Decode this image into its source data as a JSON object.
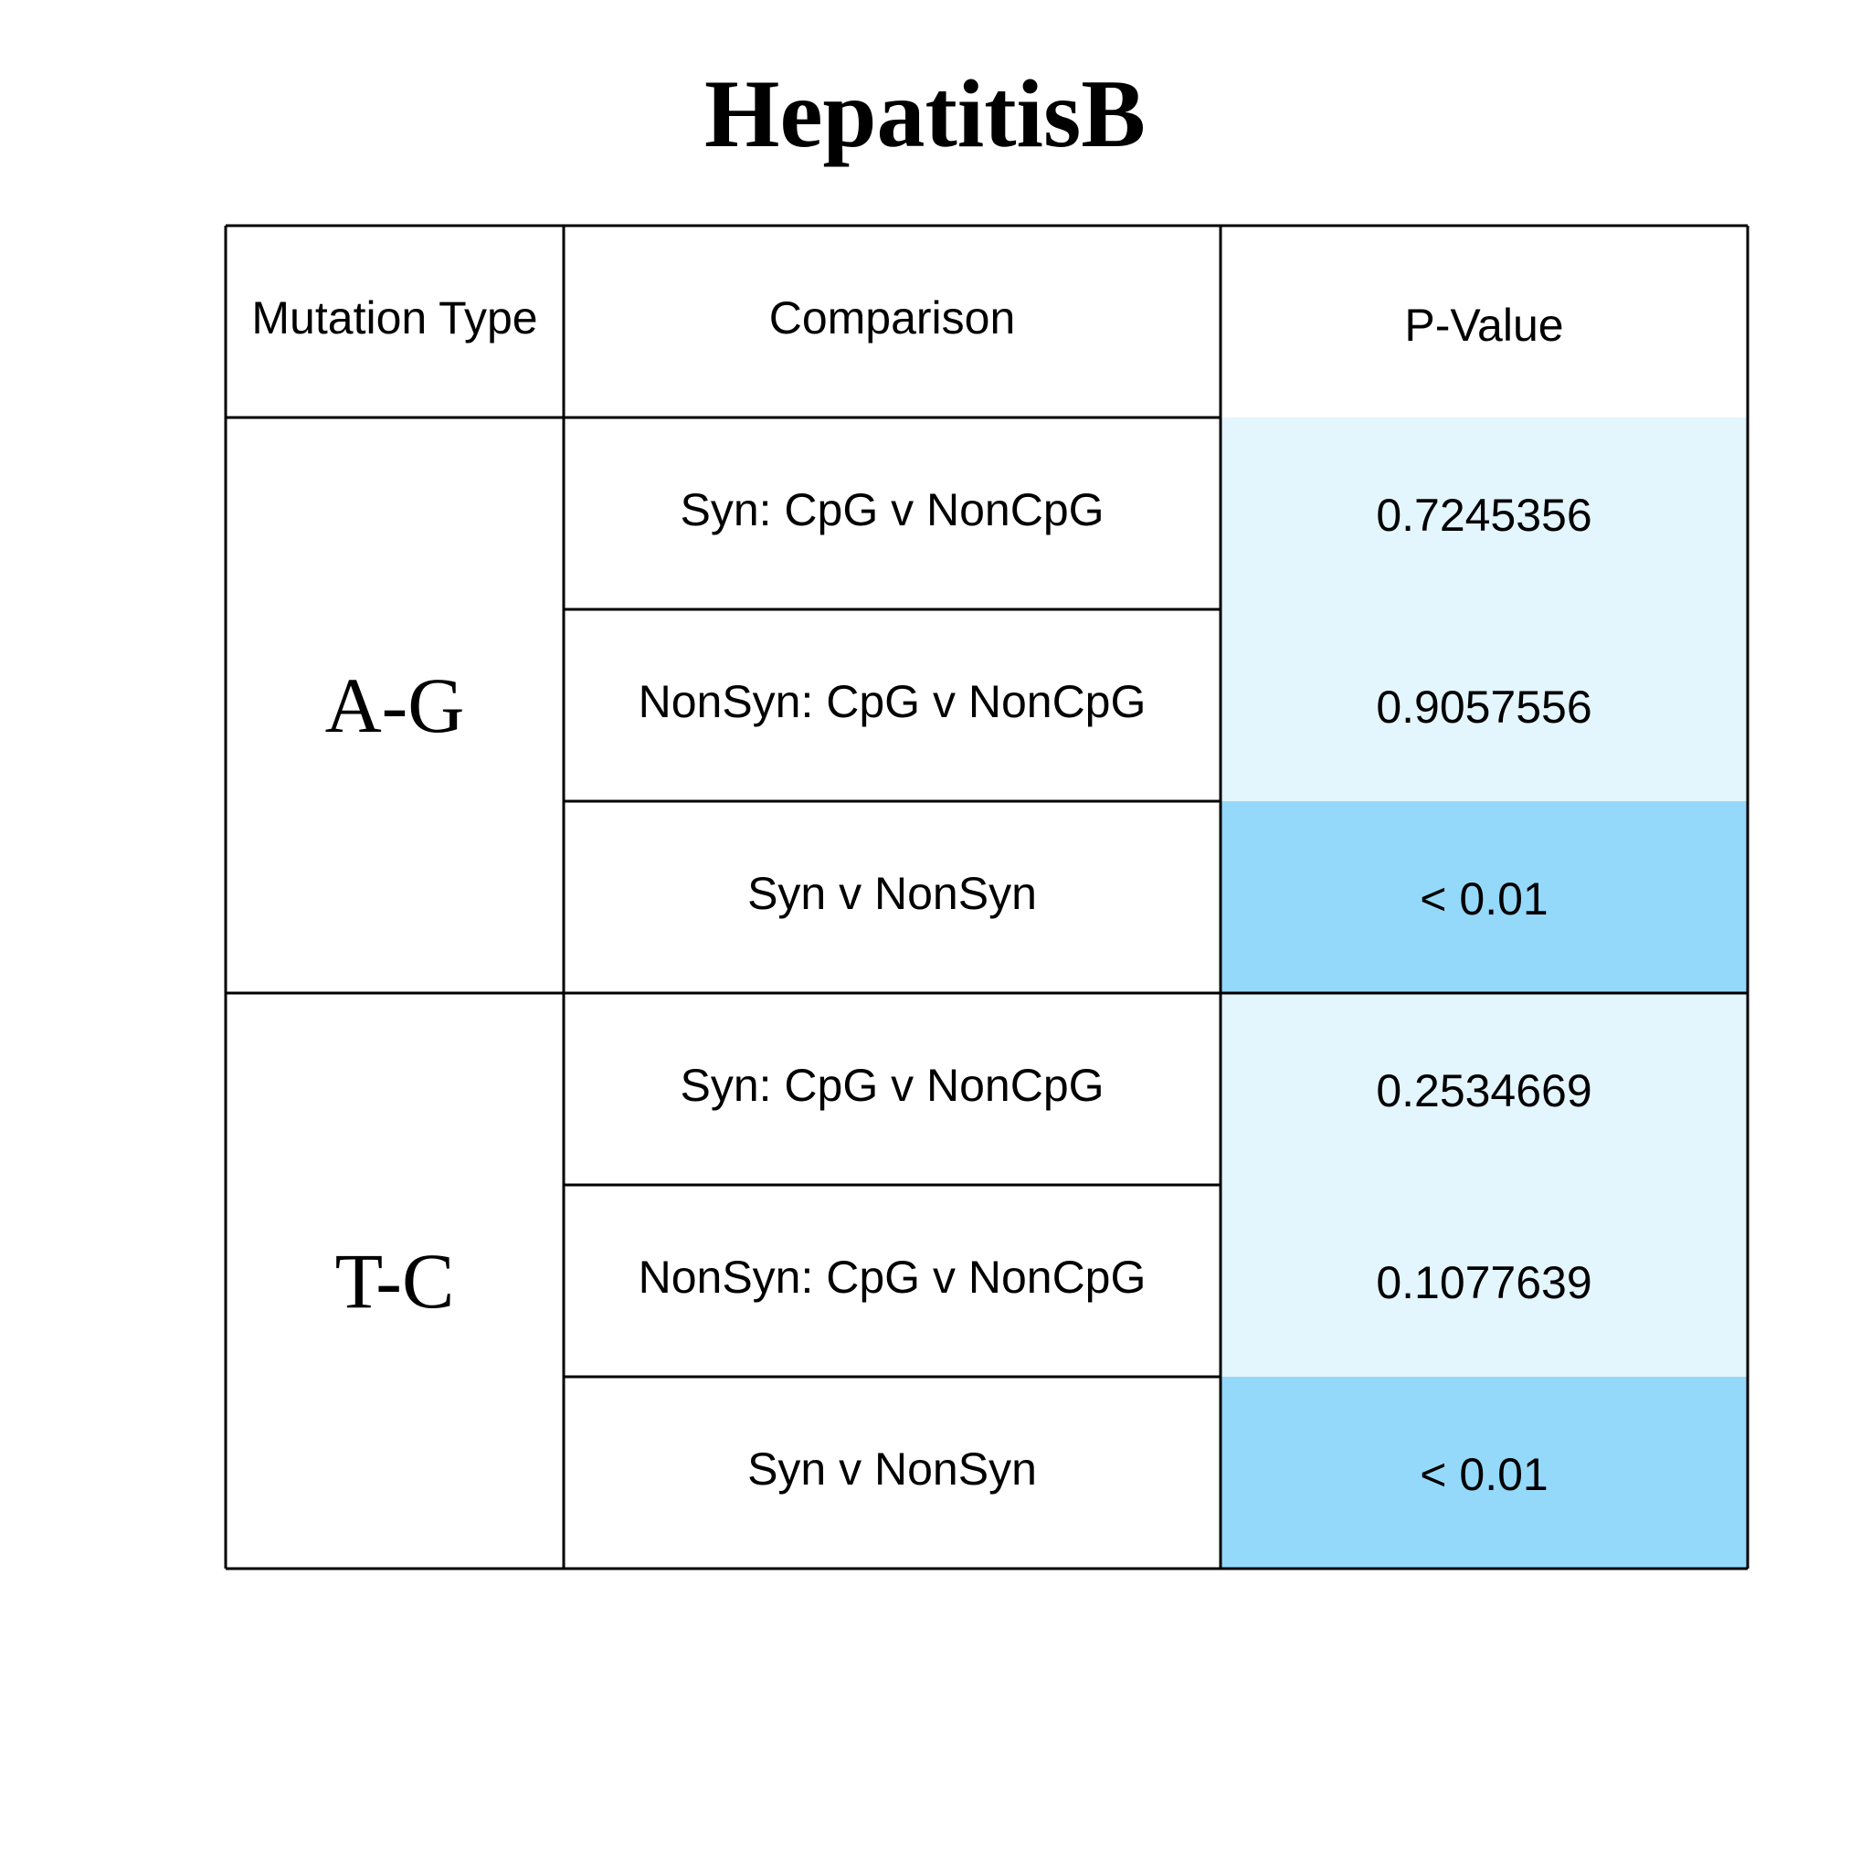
{
  "chart_data": {
    "type": "table",
    "title": "HepatitisB",
    "columns": [
      "Mutation Type",
      "Comparison",
      "P-Value"
    ],
    "groups": [
      {
        "mutation_type": "A-G",
        "rows": [
          {
            "comparison": "Syn: CpG v NonCpG",
            "p_value": "0.7245356",
            "significant": false
          },
          {
            "comparison": "NonSyn: CpG v NonCpG",
            "p_value": "0.9057556",
            "significant": false
          },
          {
            "comparison": "Syn v NonSyn",
            "p_value": "< 0.01",
            "significant": true
          }
        ]
      },
      {
        "mutation_type": "T-C",
        "rows": [
          {
            "comparison": "Syn: CpG v NonCpG",
            "p_value": "0.2534669",
            "significant": false
          },
          {
            "comparison": "NonSyn: CpG v NonCpG",
            "p_value": "0.1077639",
            "significant": false
          },
          {
            "comparison": "Syn v NonSyn",
            "p_value": "< 0.01",
            "significant": true
          }
        ]
      }
    ],
    "colors": {
      "not_significant": "#e3f5fd",
      "significant": "#95d9fa",
      "border": "#000000"
    }
  }
}
